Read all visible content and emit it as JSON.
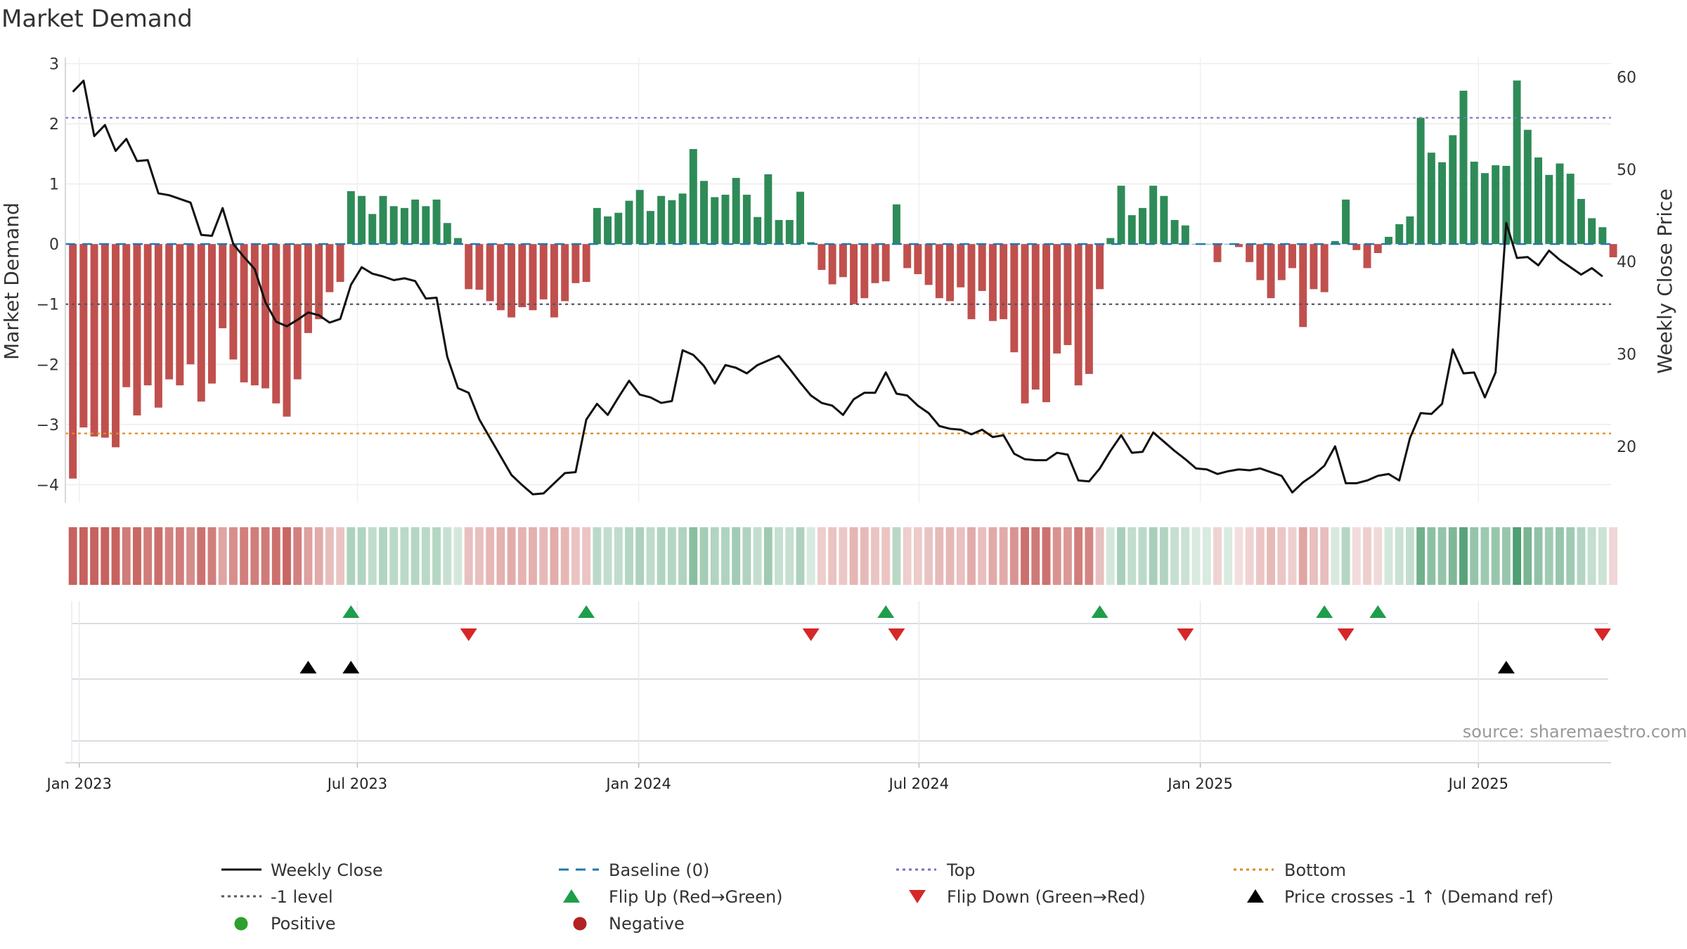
{
  "chart_data": {
    "type": "bar",
    "title": "Market Demand",
    "ylabel": "Market Demand",
    "y2label": "Weekly Close Price",
    "ylim": [
      -4.3,
      3.1
    ],
    "y2lim": [
      13.9,
      62.1
    ],
    "yticks": [
      3,
      2,
      1,
      0,
      -1,
      -2,
      -3,
      -4
    ],
    "yticks_labels": [
      "3",
      "2",
      "1",
      "0",
      "−1",
      "−2",
      "−3",
      "−4"
    ],
    "y2ticks": [
      60,
      50,
      40,
      30,
      20
    ],
    "y2ticks_labels": [
      "60",
      "50",
      "40",
      "30",
      "20"
    ],
    "x_range": [
      -0.7,
      143.8
    ],
    "x_ticks": [
      {
        "label": "Jan 2023",
        "index": 0.6
      },
      {
        "label": "Jul 2023",
        "index": 26.6
      },
      {
        "label": "Jan 2024",
        "index": 52.9
      },
      {
        "label": "Jul 2024",
        "index": 79.1
      },
      {
        "label": "Jan 2025",
        "index": 105.4
      },
      {
        "label": "Jul 2025",
        "index": 131.4
      }
    ],
    "reference_lines": {
      "top": 2.1,
      "bottom": -3.15,
      "minus_one": -1.0,
      "baseline": 0
    },
    "series": [
      {
        "name": "Market Demand",
        "kind": "bar",
        "values": [
          -3.9,
          -3.05,
          -3.2,
          -3.22,
          -3.38,
          -2.38,
          -2.85,
          -2.35,
          -2.72,
          -2.25,
          -2.35,
          -2.0,
          -2.62,
          -2.32,
          -1.4,
          -1.92,
          -2.3,
          -2.35,
          -2.4,
          -2.65,
          -2.87,
          -2.25,
          -1.48,
          -1.25,
          -0.8,
          -0.63,
          0.88,
          0.8,
          0.5,
          0.8,
          0.63,
          0.6,
          0.74,
          0.63,
          0.74,
          0.35,
          0.1,
          -0.75,
          -0.76,
          -0.95,
          -1.1,
          -1.22,
          -1.05,
          -1.1,
          -0.92,
          -1.22,
          -0.95,
          -0.65,
          -0.63,
          0.6,
          0.46,
          0.52,
          0.72,
          0.9,
          0.55,
          0.8,
          0.73,
          0.84,
          1.58,
          1.05,
          0.78,
          0.82,
          1.1,
          0.82,
          0.45,
          1.16,
          0.4,
          0.4,
          0.87,
          0.03,
          -0.43,
          -0.67,
          -0.55,
          -1.0,
          -0.9,
          -0.65,
          -0.62,
          0.66,
          -0.4,
          -0.5,
          -0.68,
          -0.9,
          -0.95,
          -0.72,
          -1.25,
          -0.78,
          -1.28,
          -1.25,
          -1.8,
          -2.65,
          -2.42,
          -2.63,
          -1.82,
          -1.68,
          -2.35,
          -2.16,
          -0.75,
          0.1,
          0.97,
          0.48,
          0.6,
          0.97,
          0.8,
          0.4,
          0.31,
          0,
          0,
          -0.3,
          0,
          -0.05,
          -0.3,
          -0.6,
          -0.9,
          -0.6,
          -0.4,
          -1.38,
          -0.75,
          -0.8,
          0.05,
          0.74,
          -0.1,
          -0.4,
          -0.15,
          0.12,
          0.33,
          0.46,
          2.1,
          1.52,
          1.36,
          1.81,
          2.55,
          1.37,
          1.18,
          1.31,
          1.3,
          2.72,
          1.9,
          1.44,
          1.15,
          1.34,
          1.17,
          0.75,
          0.43,
          0.28,
          -0.22
        ]
      },
      {
        "name": "Weekly Close",
        "kind": "line",
        "axis": "right",
        "values": [
          58.4,
          59.6,
          53.6,
          54.8,
          52.0,
          53.3,
          50.9,
          51.0,
          47.4,
          47.2,
          46.8,
          46.4,
          42.9,
          42.8,
          45.8,
          41.9,
          40.5,
          39.2,
          35.6,
          33.5,
          33.0,
          33.7,
          34.5,
          34.2,
          33.4,
          33.8,
          37.5,
          39.4,
          38.7,
          38.4,
          38.0,
          38.2,
          37.9,
          36.0,
          36.1,
          29.7,
          26.3,
          25.8,
          22.9,
          20.9,
          18.9,
          16.9,
          15.8,
          14.8,
          14.9,
          16.0,
          17.1,
          17.2,
          22.9,
          24.6,
          23.4,
          25.3,
          27.1,
          25.6,
          25.3,
          24.7,
          24.9,
          30.4,
          29.9,
          28.7,
          26.8,
          28.8,
          28.5,
          27.9,
          28.8,
          29.3,
          29.8,
          28.4,
          26.9,
          25.5,
          24.7,
          24.4,
          23.4,
          25.1,
          25.8,
          25.8,
          28.0,
          25.7,
          25.5,
          24.4,
          23.6,
          22.2,
          21.9,
          21.8,
          21.3,
          21.8,
          21.0,
          21.2,
          19.2,
          18.6,
          18.5,
          18.5,
          19.3,
          19.1,
          16.3,
          16.2,
          17.6,
          19.5,
          21.2,
          19.3,
          19.4,
          21.5,
          20.5,
          19.5,
          18.6,
          17.6,
          17.5,
          17.0,
          17.3,
          17.5,
          17.4,
          17.6,
          17.2,
          16.8,
          15.0,
          16.1,
          16.9,
          17.9,
          20.0,
          16.0,
          16.0,
          16.3,
          16.8,
          17.0,
          16.3,
          20.9,
          23.6,
          23.5,
          24.6,
          30.5,
          27.9,
          28.0,
          25.3,
          28.0,
          44.2,
          40.4,
          40.5,
          39.6,
          41.2,
          40.2,
          39.4,
          38.6,
          39.3,
          38.4
        ]
      }
    ],
    "color_strip": {
      "positive_color": "#2e8b57",
      "negative_color": "#c0504d"
    },
    "events": {
      "flip_up_index": [
        26,
        48,
        76,
        96,
        117,
        122
      ],
      "flip_down_index": [
        37,
        69,
        77,
        104,
        119,
        143
      ],
      "price_cross_index": [
        22,
        26,
        134
      ]
    }
  },
  "source_text": "source: sharemaestro.com",
  "legend": {
    "weekly_close": "Weekly Close",
    "baseline": "Baseline (0)",
    "top": "Top",
    "bottom": "Bottom",
    "minus_one": "-1 level",
    "flip_up": "Flip Up (Red→Green)",
    "flip_down": "Flip Down (Green→Red)",
    "price_cross": "Price crosses -1 ↑ (Demand ref)",
    "positive": "Positive",
    "negative": "Negative"
  },
  "colors": {
    "positive": "#2e8b57",
    "negative": "#c0504d",
    "line": "#111111",
    "baseline": "#1f77b4",
    "top": "#7b6fbd",
    "bottom": "#e08a1e",
    "minus_one": "#555566",
    "flip_up": "#1e9e4a",
    "flip_down": "#d62728",
    "cross": "#000000",
    "positive_marker": "#2ca02c",
    "negative_marker": "#b22222"
  }
}
